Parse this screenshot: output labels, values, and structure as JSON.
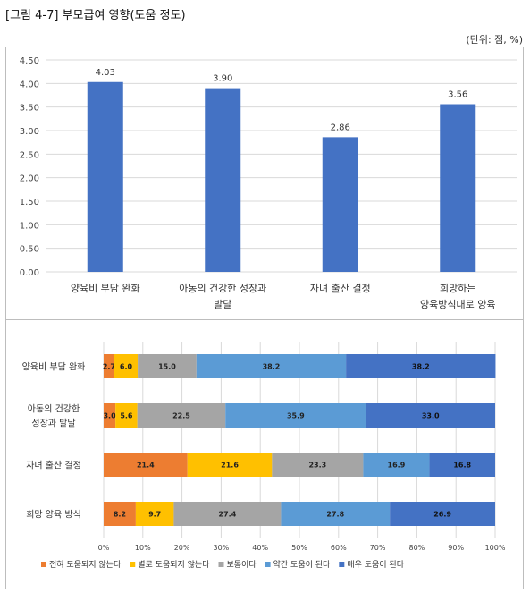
{
  "figure": {
    "title": "[그림 4-7] 부모급여 영향(도움 정도)",
    "unit": "(단위: 점, %)"
  },
  "colors": {
    "bar": "#4472C4",
    "stack": [
      "#ED7D31",
      "#FFC000",
      "#A5A5A5",
      "#5B9BD5",
      "#4472C4"
    ],
    "grid": "#d9d9d9"
  },
  "chart_data": [
    {
      "type": "bar",
      "categories": [
        "양육비 부담 완화",
        "아동의 건강한 성장과\n발달",
        "자녀 출산 결정",
        "희망하는\n양육방식대로 양육"
      ],
      "values": [
        4.03,
        3.9,
        2.86,
        3.56
      ],
      "data_labels": [
        "4.03",
        "3.90",
        "2.86",
        "3.56"
      ],
      "ylim": [
        0,
        4.5
      ],
      "yticks": [
        "0.00",
        "0.50",
        "1.00",
        "1.50",
        "2.00",
        "2.50",
        "3.00",
        "3.50",
        "4.00",
        "4.50"
      ],
      "grid": true
    },
    {
      "type": "bar",
      "orientation": "horizontal",
      "stacked": true,
      "categories": [
        "양육비 부담 완화",
        "아동의 건강한\n성장과 발달",
        "자녀 출산 결정",
        "희망 양육 방식"
      ],
      "series": [
        {
          "name": "전혀 도움되지 않는다",
          "values": [
            2.7,
            3.0,
            21.4,
            8.2
          ]
        },
        {
          "name": "별로 도움되지 않는다",
          "values": [
            6.0,
            5.6,
            21.6,
            9.7
          ]
        },
        {
          "name": "보통이다",
          "values": [
            15.0,
            22.5,
            23.3,
            27.4
          ]
        },
        {
          "name": "약간 도움이 된다",
          "values": [
            38.2,
            35.9,
            16.9,
            27.8
          ]
        },
        {
          "name": "매우 도움이 된다",
          "values": [
            38.2,
            33.0,
            16.8,
            26.9
          ]
        }
      ],
      "xlim": [
        0,
        100
      ],
      "xticks": [
        "0%",
        "10%",
        "20%",
        "30%",
        "40%",
        "50%",
        "60%",
        "70%",
        "80%",
        "90%",
        "100%"
      ],
      "legend": "bottom",
      "grid": true
    }
  ]
}
